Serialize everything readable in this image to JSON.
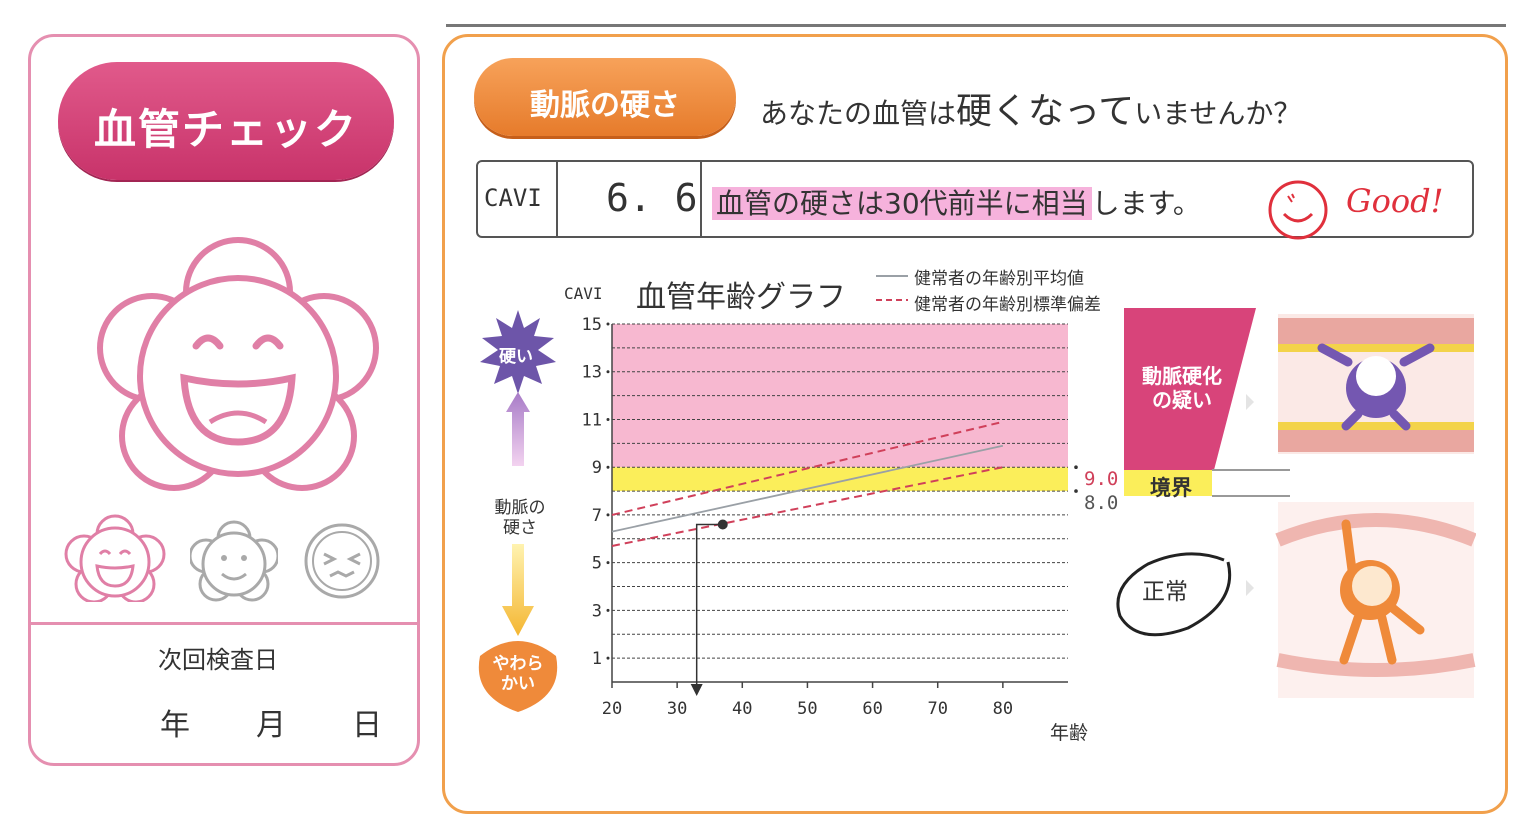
{
  "left_panel": {
    "badge": "血管チェック",
    "next_exam_label": "次回検査日",
    "date_units": {
      "year": "年",
      "month": "月",
      "day": "日"
    },
    "mood_icons": [
      "smiling-flower-icon",
      "neutral-flower-icon",
      "frowning-face-icon"
    ]
  },
  "right_panel": {
    "section_label": "動脈の硬さ",
    "headline_pre": "あなたの血管は",
    "headline_big": "硬くなって",
    "headline_post": "いませんか？",
    "result": {
      "label": "CAVI",
      "value": "6. 6",
      "text_highlight": "血管の硬さは30代前半に相当",
      "text_rest": "します。",
      "stamp": "Good!"
    },
    "graph": {
      "title": "血管年齢グラフ",
      "y_axis_title": "CAVI",
      "x_axis_title": "年齢",
      "legend": [
        "健常者の年齢別平均値",
        "健常者の年齢別標準偏差"
      ],
      "threshold_labels": [
        "9.0",
        "8.0"
      ]
    },
    "side_labels": {
      "hard": "硬い",
      "artery_hardness": [
        "動脈の",
        "硬さ"
      ],
      "soft": [
        "やわら",
        "かい"
      ],
      "suspicion": [
        "動脈硬化",
        "の疑い"
      ],
      "border": "境界",
      "normal": "正常"
    },
    "colors": {
      "pink_zone": "#f7b8d0",
      "yellow_zone": "#fbee5a",
      "accent_orange": "#ef8a3a",
      "accent_magenta": "#d8447a"
    }
  },
  "chart_data": {
    "type": "line",
    "ylabel": "CAVI",
    "xlabel": "年齢",
    "title": "血管年齢グラフ",
    "xlim": [
      20,
      90
    ],
    "ylim": [
      0,
      15
    ],
    "x_ticks": [
      20,
      30,
      40,
      50,
      60,
      70,
      80
    ],
    "y_ticks": [
      1,
      3,
      5,
      7,
      9,
      11,
      13,
      15
    ],
    "zones": [
      {
        "name": "動脈硬化の疑い",
        "from": 9.0,
        "to": 15,
        "color": "#f7b8d0"
      },
      {
        "name": "境界",
        "from": 8.0,
        "to": 9.0,
        "color": "#fbee5a"
      },
      {
        "name": "正常",
        "from": 0,
        "to": 8.0,
        "color": "#ffffff"
      }
    ],
    "series": [
      {
        "name": "健常者の年齢別平均値",
        "style": "solid",
        "color": "#9aa0a6",
        "x": [
          20,
          80
        ],
        "y": [
          6.3,
          9.9
        ]
      },
      {
        "name": "健常者の年齢別標準偏差",
        "style": "dashed",
        "color": "#d0405a",
        "x": [
          20,
          80
        ],
        "y": [
          7.0,
          10.9
        ]
      },
      {
        "style": "dashed",
        "color": "#d0405a",
        "x": [
          20,
          80
        ],
        "y": [
          5.7,
          9.0
        ]
      }
    ],
    "point": {
      "x": 37,
      "y": 6.6,
      "projection_x": 33
    }
  }
}
